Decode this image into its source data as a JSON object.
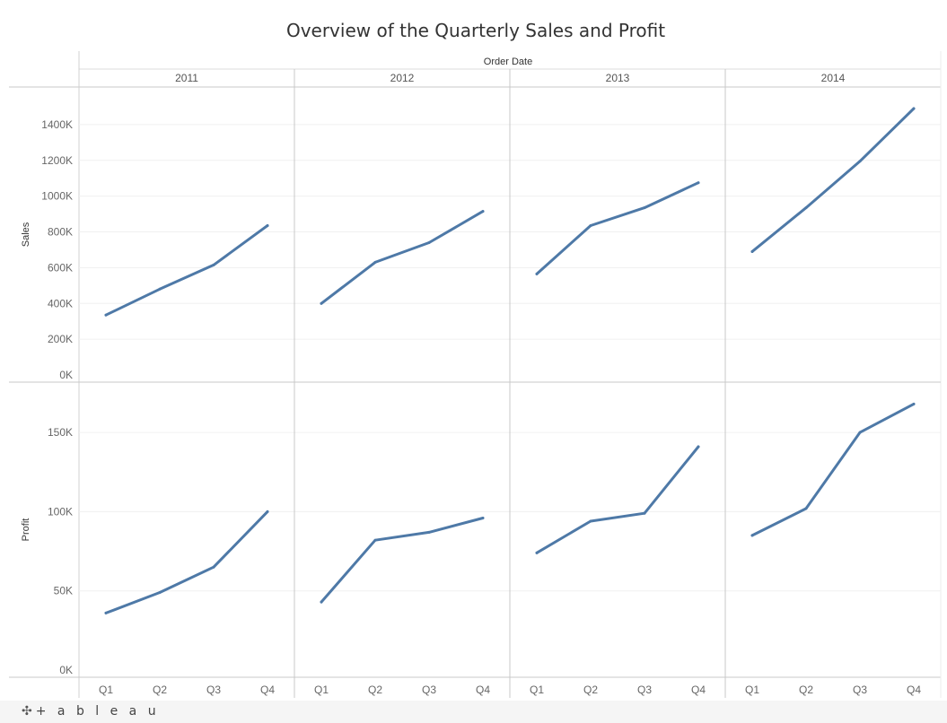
{
  "page": {
    "title": "Overview of  the Quarterly Sales and Profit",
    "logo_text": "+ a b l e a u",
    "logo_icon": "tableau-cross-icon"
  },
  "chart_data": {
    "type": "line",
    "column_header": "Order Date",
    "years": [
      "2011",
      "2012",
      "2013",
      "2014"
    ],
    "categories": [
      "Q1",
      "Q2",
      "Q3",
      "Q4"
    ],
    "line_color": "#4e79a7",
    "grid": true,
    "panels": [
      {
        "ylabel": "Sales",
        "ylim": [
          0,
          1550000
        ],
        "ticks": [
          {
            "value": 0,
            "label": "0K"
          },
          {
            "value": 200000,
            "label": "200K"
          },
          {
            "value": 400000,
            "label": "400K"
          },
          {
            "value": 600000,
            "label": "600K"
          },
          {
            "value": 800000,
            "label": "800K"
          },
          {
            "value": 1000000,
            "label": "1000K"
          },
          {
            "value": 1200000,
            "label": "1200K"
          },
          {
            "value": 1400000,
            "label": "1400K"
          }
        ],
        "series": [
          {
            "year": "2011",
            "values": [
              335000,
              480000,
              615000,
              835000
            ]
          },
          {
            "year": "2012",
            "values": [
              400000,
              630000,
              740000,
              915000
            ]
          },
          {
            "year": "2013",
            "values": [
              565000,
              835000,
              935000,
              1075000
            ]
          },
          {
            "year": "2014",
            "values": [
              690000,
              935000,
              1195000,
              1490000
            ]
          }
        ]
      },
      {
        "ylabel": "Profit",
        "ylim": [
          0,
          175000
        ],
        "ticks": [
          {
            "value": 0,
            "label": "0K"
          },
          {
            "value": 50000,
            "label": "50K"
          },
          {
            "value": 100000,
            "label": "100K"
          },
          {
            "value": 150000,
            "label": "150K"
          }
        ],
        "series": [
          {
            "year": "2011",
            "values": [
              36000,
              49000,
              65000,
              100000
            ]
          },
          {
            "year": "2012",
            "values": [
              43000,
              82000,
              87000,
              96000
            ]
          },
          {
            "year": "2013",
            "values": [
              74000,
              94000,
              99000,
              141000
            ]
          },
          {
            "year": "2014",
            "values": [
              85000,
              102000,
              150000,
              168000
            ]
          }
        ]
      }
    ]
  }
}
